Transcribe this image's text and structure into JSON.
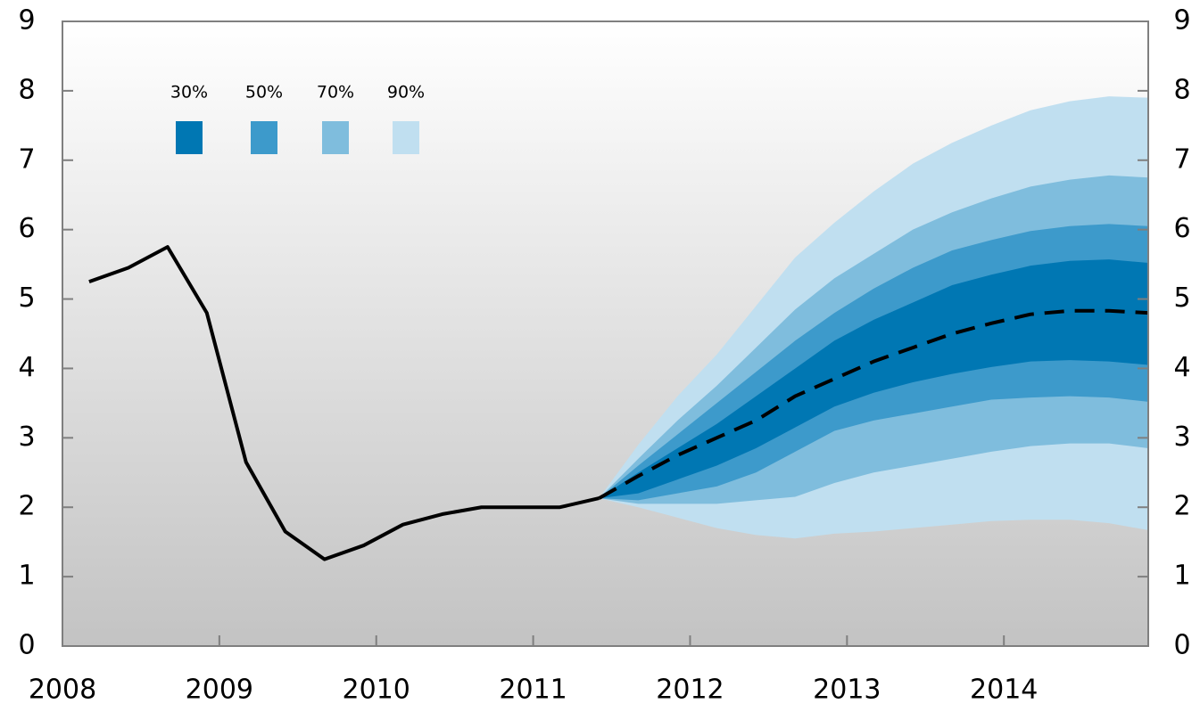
{
  "chart_data": {
    "type": "fan",
    "xlim": [
      2008,
      2014.92
    ],
    "xticks": [
      2008,
      2009,
      2010,
      2011,
      2012,
      2013,
      2014
    ],
    "ylim": [
      0,
      9
    ],
    "yticks": [
      0,
      1,
      2,
      3,
      4,
      5,
      6,
      7,
      8,
      9
    ],
    "history": {
      "x": [
        2008.17,
        2008.42,
        2008.67,
        2008.92,
        2009.17,
        2009.42,
        2009.67,
        2009.92,
        2010.17,
        2010.42,
        2010.67,
        2010.92,
        2011.17,
        2011.42
      ],
      "values": [
        5.25,
        5.45,
        5.75,
        4.8,
        2.65,
        1.65,
        1.25,
        1.45,
        1.75,
        1.9,
        2.0,
        2.0,
        2.0,
        2.13
      ],
      "color": "#000000"
    },
    "forecast": {
      "x": [
        2011.42,
        2011.67,
        2011.92,
        2012.17,
        2012.42,
        2012.67,
        2012.92,
        2013.17,
        2013.42,
        2013.67,
        2013.92,
        2014.17,
        2014.42,
        2014.67,
        2014.92
      ],
      "values": [
        2.13,
        2.45,
        2.75,
        3.0,
        3.25,
        3.6,
        3.85,
        4.1,
        4.3,
        4.5,
        4.65,
        4.78,
        4.83,
        4.83,
        4.8
      ],
      "color": "#000000",
      "dashed": true
    },
    "series": [
      {
        "name": "30%",
        "color": "#0077b3",
        "upper": [
          2.13,
          2.5,
          2.85,
          3.2,
          3.6,
          4.0,
          4.4,
          4.7,
          4.95,
          5.2,
          5.35,
          5.48,
          5.55,
          5.57,
          5.52
        ],
        "lower": [
          2.13,
          2.2,
          2.4,
          2.6,
          2.85,
          3.15,
          3.45,
          3.65,
          3.8,
          3.92,
          4.02,
          4.1,
          4.12,
          4.1,
          4.05
        ]
      },
      {
        "name": "50%",
        "color": "#3d9acb",
        "upper": [
          2.13,
          2.6,
          3.05,
          3.5,
          3.95,
          4.4,
          4.8,
          5.15,
          5.45,
          5.7,
          5.85,
          5.98,
          6.05,
          6.08,
          6.05
        ],
        "lower": [
          2.13,
          2.1,
          2.2,
          2.3,
          2.5,
          2.8,
          3.1,
          3.25,
          3.35,
          3.45,
          3.55,
          3.58,
          3.6,
          3.58,
          3.52
        ]
      },
      {
        "name": "70%",
        "color": "#7fbddd",
        "upper": [
          2.13,
          2.7,
          3.25,
          3.75,
          4.3,
          4.85,
          5.3,
          5.65,
          6.0,
          6.25,
          6.45,
          6.62,
          6.72,
          6.78,
          6.75
        ],
        "lower": [
          2.13,
          2.05,
          2.05,
          2.05,
          2.1,
          2.15,
          2.35,
          2.5,
          2.6,
          2.7,
          2.8,
          2.88,
          2.92,
          2.92,
          2.85
        ]
      },
      {
        "name": "90%",
        "color": "#c0dff0",
        "upper": [
          2.13,
          2.9,
          3.6,
          4.2,
          4.9,
          5.6,
          6.1,
          6.55,
          6.95,
          7.25,
          7.5,
          7.72,
          7.85,
          7.92,
          7.9
        ],
        "lower": [
          2.13,
          2.0,
          1.85,
          1.7,
          1.6,
          1.55,
          1.62,
          1.65,
          1.7,
          1.75,
          1.8,
          1.82,
          1.82,
          1.77,
          1.67
        ]
      }
    ]
  }
}
